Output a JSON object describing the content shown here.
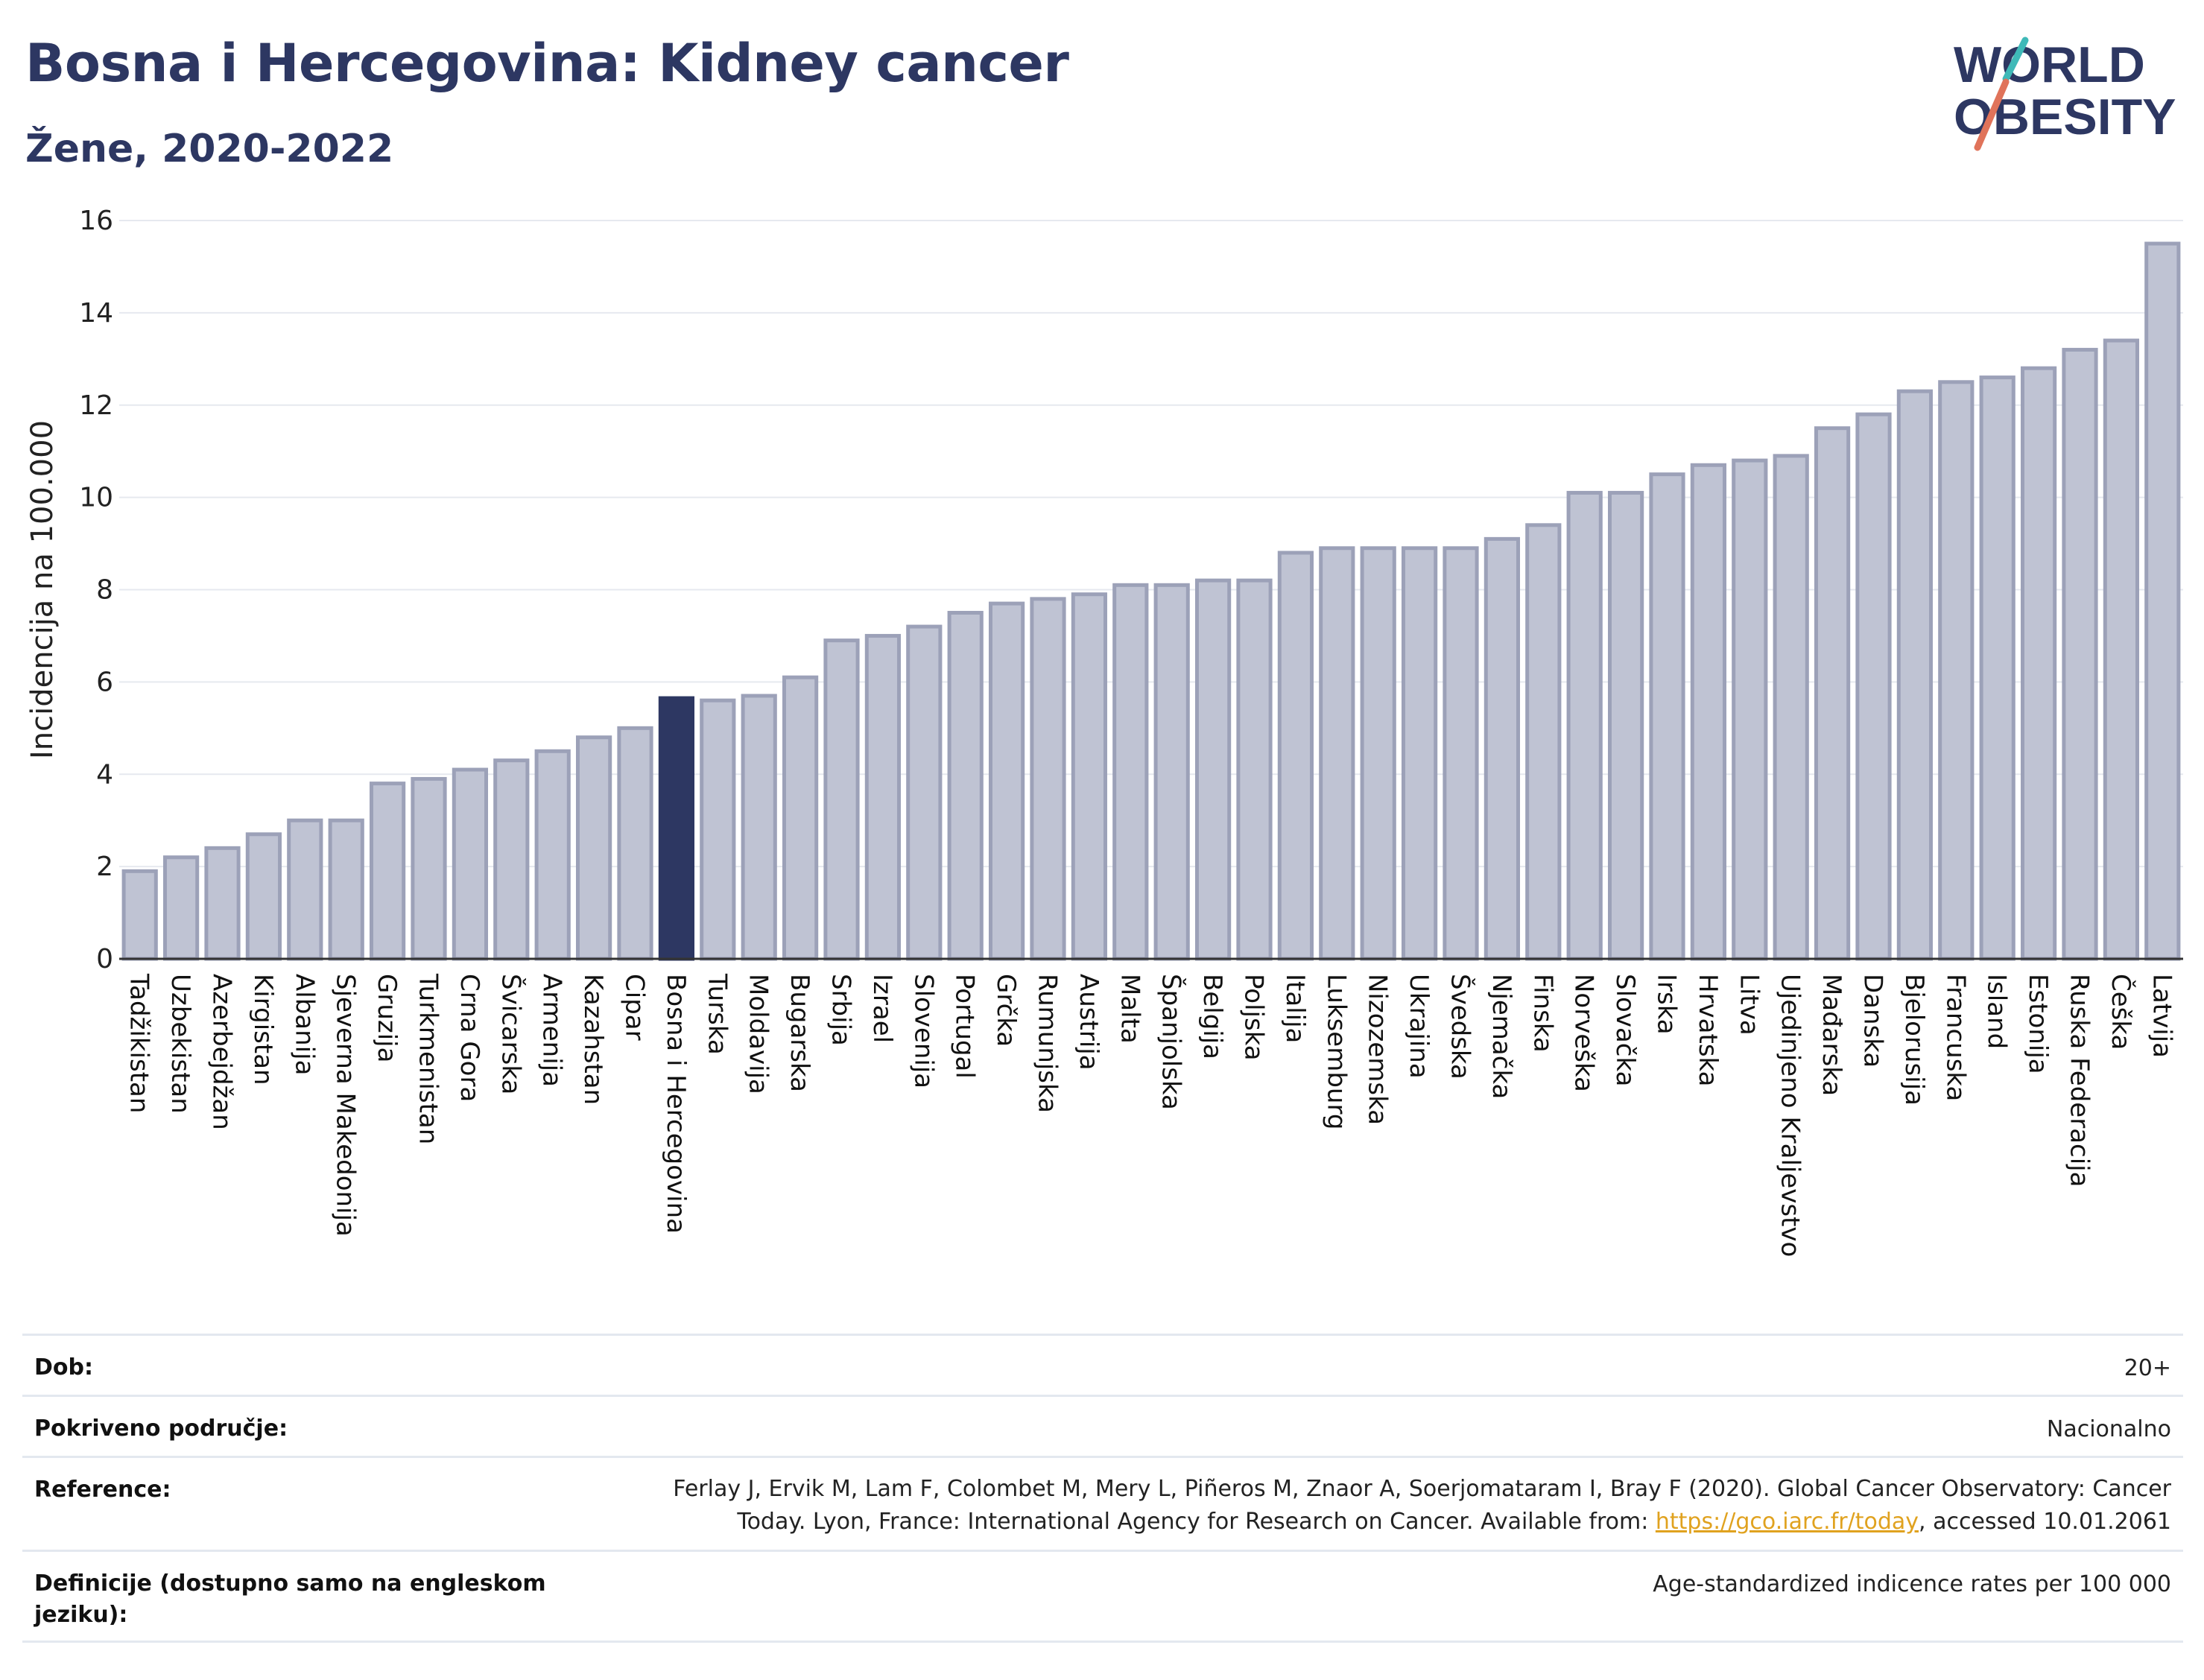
{
  "header": {
    "title": "Bosna i Hercegovina: Kidney cancer",
    "subtitle": "Žene, 2020-2022"
  },
  "logo": {
    "line1": "WORLD",
    "line2": "OBESITY"
  },
  "chart_data": {
    "type": "bar",
    "ylabel": "Incidencija na 100.000",
    "xlabel": "",
    "ylim": [
      0,
      16
    ],
    "yticks": [
      0,
      2,
      4,
      6,
      8,
      10,
      12,
      14,
      16
    ],
    "grid": true,
    "highlight": "Bosna i Hercegovina",
    "colors": {
      "bar": "#bfc3d3",
      "bar_edge": "#9ca1b8",
      "highlight": "#2d3762"
    },
    "categories": [
      "Tadžikistan",
      "Uzbekistan",
      "Azerbejdžan",
      "Kirgistan",
      "Albanija",
      "Sjeverna Makedonija",
      "Gruzija",
      "Turkmenistan",
      "Crna Gora",
      "Švicarska",
      "Armenija",
      "Kazahstan",
      "Cipar",
      "Bosna i Hercegovina",
      "Turska",
      "Moldavija",
      "Bugarska",
      "Srbija",
      "Izrael",
      "Slovenija",
      "Portugal",
      "Grčka",
      "Rumunjska",
      "Austrija",
      "Malta",
      "Španjolska",
      "Belgija",
      "Poljska",
      "Italija",
      "Luksemburg",
      "Nizozemska",
      "Ukrajina",
      "Švedska",
      "Njemačka",
      "Finska",
      "Norveška",
      "Slovačka",
      "Irska",
      "Hrvatska",
      "Litva",
      "Ujedinjeno Kraljevstvo",
      "Mađarska",
      "Danska",
      "Bjelorusija",
      "Francuska",
      "Island",
      "Estonija",
      "Ruska Federacija",
      "Češka",
      "Latvija"
    ],
    "values": [
      1.9,
      2.2,
      2.4,
      2.7,
      3.0,
      3.0,
      3.8,
      3.9,
      4.1,
      4.3,
      4.5,
      4.8,
      5.0,
      5.65,
      5.6,
      5.7,
      6.1,
      6.9,
      7.0,
      7.2,
      7.5,
      7.7,
      7.8,
      7.9,
      8.1,
      8.1,
      8.2,
      8.2,
      8.8,
      8.9,
      8.9,
      8.9,
      8.9,
      9.1,
      9.4,
      10.1,
      10.1,
      10.5,
      10.7,
      10.8,
      10.9,
      11.5,
      11.8,
      12.3,
      12.5,
      12.6,
      12.8,
      13.2,
      13.4,
      15.5
    ]
  },
  "info": {
    "age_label": "Dob:",
    "age_value": "20+",
    "coverage_label": "Pokriveno područje:",
    "coverage_value": "Nacionalno",
    "reference_label": "Reference:",
    "reference_line1": "Ferlay J, Ervik M, Lam F, Colombet M, Mery L, Piñeros M, Znaor A, Soerjomataram I, Bray F (2020). Global Cancer Observatory: Cancer",
    "reference_line2_pre": "Today. Lyon, France: International Agency for Research on Cancer. Available from: ",
    "reference_link": "https://gco.iarc.fr/today",
    "reference_line2_post": ", accessed 10.01.2061",
    "definitions_label_line1": "Definicije (dostupno samo na engleskom",
    "definitions_label_line2": "jeziku):",
    "definitions_value": "Age-standardized indicence rates per 100 000"
  }
}
